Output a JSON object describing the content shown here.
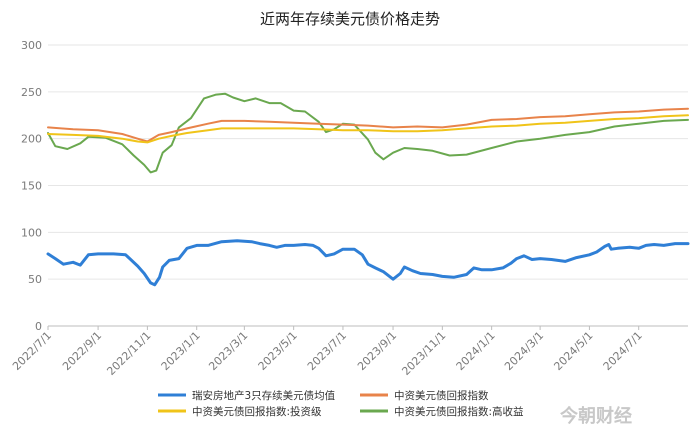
{
  "chart_data": {
    "type": "line",
    "title": "近两年存续美元债价格走势",
    "xlabel": "",
    "ylabel": "",
    "ylim": [
      0,
      300
    ],
    "yticks": [
      0,
      50,
      100,
      150,
      200,
      250,
      300
    ],
    "x_ticks": [
      "2022/7/1",
      "2022/9/1",
      "2022/11/1",
      "2023/1/1",
      "2023/3/1",
      "2023/5/1",
      "2023/7/1",
      "2023/9/1",
      "2023/11/1",
      "2024/1/1",
      "2024/3/1",
      "2024/5/1",
      "2024/7/1"
    ],
    "x_range": [
      "2022/7/1",
      "2024/8/31"
    ],
    "grid": true,
    "legend_position": "bottom",
    "series": [
      {
        "name": "瑞安房地产3只存续美元债均值",
        "color": "#2f7fd6",
        "width": 3,
        "points": [
          [
            "2022/7/1",
            77
          ],
          [
            "2022/7/10",
            72
          ],
          [
            "2022/7/20",
            66
          ],
          [
            "2022/8/1",
            68
          ],
          [
            "2022/8/10",
            65
          ],
          [
            "2022/8/20",
            76
          ],
          [
            "2022/9/1",
            77
          ],
          [
            "2022/9/20",
            77
          ],
          [
            "2022/10/5",
            76
          ],
          [
            "2022/10/20",
            64
          ],
          [
            "2022/10/28",
            56
          ],
          [
            "2022/11/5",
            46
          ],
          [
            "2022/11/10",
            44
          ],
          [
            "2022/11/16",
            52
          ],
          [
            "2022/11/20",
            63
          ],
          [
            "2022/11/28",
            70
          ],
          [
            "2022/12/10",
            72
          ],
          [
            "2022/12/20",
            83
          ],
          [
            "2023/1/1",
            86
          ],
          [
            "2023/1/15",
            86
          ],
          [
            "2023/2/1",
            90
          ],
          [
            "2023/2/20",
            91
          ],
          [
            "2023/3/10",
            90
          ],
          [
            "2023/3/20",
            88
          ],
          [
            "2023/4/1",
            86
          ],
          [
            "2023/4/10",
            84
          ],
          [
            "2023/4/20",
            86
          ],
          [
            "2023/5/1",
            86
          ],
          [
            "2023/5/15",
            87
          ],
          [
            "2023/5/25",
            86
          ],
          [
            "2023/6/1",
            83
          ],
          [
            "2023/6/10",
            75
          ],
          [
            "2023/6/20",
            77
          ],
          [
            "2023/7/1",
            82
          ],
          [
            "2023/7/15",
            82
          ],
          [
            "2023/7/25",
            76
          ],
          [
            "2023/8/1",
            66
          ],
          [
            "2023/8/10",
            62
          ],
          [
            "2023/8/20",
            58
          ],
          [
            "2023/9/1",
            50
          ],
          [
            "2023/9/10",
            56
          ],
          [
            "2023/9/15",
            63
          ],
          [
            "2023/9/25",
            59
          ],
          [
            "2023/10/5",
            56
          ],
          [
            "2023/10/20",
            55
          ],
          [
            "2023/11/1",
            53
          ],
          [
            "2023/11/15",
            52
          ],
          [
            "2023/12/1",
            55
          ],
          [
            "2023/12/10",
            62
          ],
          [
            "2023/12/20",
            60
          ],
          [
            "2024/1/1",
            60
          ],
          [
            "2024/1/15",
            62
          ],
          [
            "2024/1/25",
            67
          ],
          [
            "2024/2/1",
            72
          ],
          [
            "2024/2/10",
            75
          ],
          [
            "2024/2/20",
            71
          ],
          [
            "2024/3/1",
            72
          ],
          [
            "2024/3/15",
            71
          ],
          [
            "2024/4/1",
            69
          ],
          [
            "2024/4/15",
            73
          ],
          [
            "2024/5/1",
            76
          ],
          [
            "2024/5/10",
            79
          ],
          [
            "2024/5/20",
            85
          ],
          [
            "2024/5/25",
            87
          ],
          [
            "2024/5/28",
            82
          ],
          [
            "2024/6/5",
            83
          ],
          [
            "2024/6/20",
            84
          ],
          [
            "2024/7/1",
            83
          ],
          [
            "2024/7/10",
            86
          ],
          [
            "2024/7/20",
            87
          ],
          [
            "2024/8/1",
            86
          ],
          [
            "2024/8/15",
            88
          ],
          [
            "2024/8/31",
            88
          ]
        ]
      },
      {
        "name": "中资美元债回报指数",
        "color": "#e8834a",
        "width": 2,
        "points": [
          [
            "2022/7/1",
            212
          ],
          [
            "2022/8/1",
            210
          ],
          [
            "2022/9/1",
            209
          ],
          [
            "2022/10/1",
            205
          ],
          [
            "2022/10/20",
            200
          ],
          [
            "2022/11/1",
            197
          ],
          [
            "2022/11/15",
            204
          ],
          [
            "2022/12/1",
            207
          ],
          [
            "2022/12/20",
            211
          ],
          [
            "2023/1/15",
            216
          ],
          [
            "2023/2/1",
            219
          ],
          [
            "2023/3/1",
            219
          ],
          [
            "2023/4/1",
            218
          ],
          [
            "2023/5/1",
            217
          ],
          [
            "2023/6/1",
            216
          ],
          [
            "2023/7/1",
            215
          ],
          [
            "2023/8/1",
            214
          ],
          [
            "2023/9/1",
            212
          ],
          [
            "2023/10/1",
            213
          ],
          [
            "2023/11/1",
            212
          ],
          [
            "2023/12/1",
            215
          ],
          [
            "2024/1/1",
            220
          ],
          [
            "2024/2/1",
            221
          ],
          [
            "2024/3/1",
            223
          ],
          [
            "2024/4/1",
            224
          ],
          [
            "2024/5/1",
            226
          ],
          [
            "2024/6/1",
            228
          ],
          [
            "2024/7/1",
            229
          ],
          [
            "2024/8/1",
            231
          ],
          [
            "2024/8/31",
            232
          ]
        ]
      },
      {
        "name": "中资美元债回报指数:投资级",
        "color": "#f0c419",
        "width": 2,
        "points": [
          [
            "2022/7/1",
            205
          ],
          [
            "2022/8/1",
            204
          ],
          [
            "2022/9/1",
            203
          ],
          [
            "2022/10/1",
            200
          ],
          [
            "2022/10/20",
            197
          ],
          [
            "2022/11/1",
            196
          ],
          [
            "2022/11/15",
            200
          ],
          [
            "2022/12/1",
            203
          ],
          [
            "2022/12/20",
            206
          ],
          [
            "2023/1/15",
            209
          ],
          [
            "2023/2/1",
            211
          ],
          [
            "2023/3/1",
            211
          ],
          [
            "2023/4/1",
            211
          ],
          [
            "2023/5/1",
            211
          ],
          [
            "2023/6/1",
            210
          ],
          [
            "2023/7/1",
            209
          ],
          [
            "2023/8/1",
            209
          ],
          [
            "2023/9/1",
            208
          ],
          [
            "2023/10/1",
            208
          ],
          [
            "2023/11/1",
            209
          ],
          [
            "2023/12/1",
            211
          ],
          [
            "2024/1/1",
            213
          ],
          [
            "2024/2/1",
            214
          ],
          [
            "2024/3/1",
            216
          ],
          [
            "2024/4/1",
            217
          ],
          [
            "2024/5/1",
            219
          ],
          [
            "2024/6/1",
            221
          ],
          [
            "2024/7/1",
            222
          ],
          [
            "2024/8/1",
            224
          ],
          [
            "2024/8/31",
            225
          ]
        ]
      },
      {
        "name": "中资美元债回报指数:高收益",
        "color": "#6aa84f",
        "width": 2,
        "points": [
          [
            "2022/7/1",
            206
          ],
          [
            "2022/7/10",
            192
          ],
          [
            "2022/7/25",
            189
          ],
          [
            "2022/8/10",
            195
          ],
          [
            "2022/8/20",
            202
          ],
          [
            "2022/9/10",
            201
          ],
          [
            "2022/10/1",
            194
          ],
          [
            "2022/10/15",
            182
          ],
          [
            "2022/10/28",
            172
          ],
          [
            "2022/11/5",
            164
          ],
          [
            "2022/11/12",
            166
          ],
          [
            "2022/11/20",
            185
          ],
          [
            "2022/12/1",
            193
          ],
          [
            "2022/12/10",
            212
          ],
          [
            "2022/12/25",
            222
          ],
          [
            "2023/1/10",
            243
          ],
          [
            "2023/1/25",
            247
          ],
          [
            "2023/2/5",
            248
          ],
          [
            "2023/2/15",
            244
          ],
          [
            "2023/3/1",
            240
          ],
          [
            "2023/3/15",
            243
          ],
          [
            "2023/4/1",
            238
          ],
          [
            "2023/4/15",
            238
          ],
          [
            "2023/5/1",
            230
          ],
          [
            "2023/5/15",
            229
          ],
          [
            "2023/6/1",
            218
          ],
          [
            "2023/6/10",
            207
          ],
          [
            "2023/6/20",
            210
          ],
          [
            "2023/7/1",
            216
          ],
          [
            "2023/7/15",
            215
          ],
          [
            "2023/8/1",
            199
          ],
          [
            "2023/8/10",
            185
          ],
          [
            "2023/8/20",
            178
          ],
          [
            "2023/9/1",
            185
          ],
          [
            "2023/9/15",
            190
          ],
          [
            "2023/10/1",
            189
          ],
          [
            "2023/10/20",
            187
          ],
          [
            "2023/11/10",
            182
          ],
          [
            "2023/12/1",
            183
          ],
          [
            "2024/1/1",
            190
          ],
          [
            "2024/2/1",
            197
          ],
          [
            "2024/3/1",
            200
          ],
          [
            "2024/4/1",
            204
          ],
          [
            "2024/5/1",
            207
          ],
          [
            "2024/6/1",
            213
          ],
          [
            "2024/7/1",
            216
          ],
          [
            "2024/8/1",
            219
          ],
          [
            "2024/8/31",
            220
          ]
        ]
      }
    ]
  },
  "watermark": "今朝财经"
}
